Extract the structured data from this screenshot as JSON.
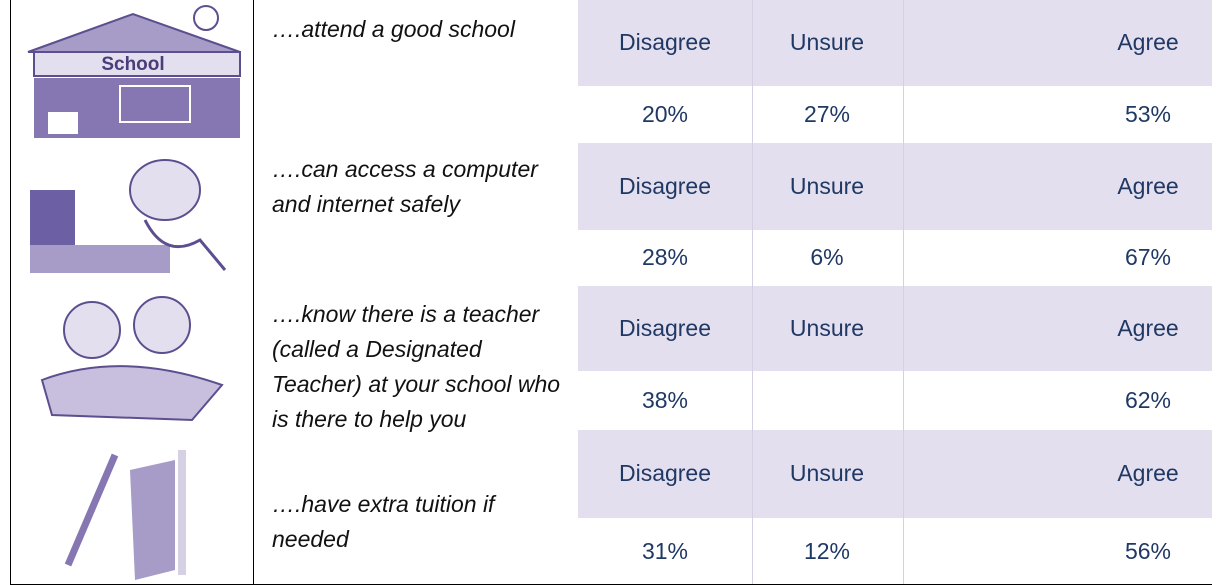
{
  "rows": [
    {
      "icon_label": "School",
      "statement": "….attend a good school",
      "headers": [
        "Disagree",
        "Unsure",
        "Agree"
      ],
      "values": [
        "20%",
        "27%",
        "53%"
      ]
    },
    {
      "statement": "….can access a computer and internet safely",
      "headers": [
        "Disagree",
        "Unsure",
        "Agree"
      ],
      "values": [
        "28%",
        "6%",
        "67%"
      ]
    },
    {
      "statement": "….know there is a teacher (called a Designated Teacher) at your school who is there to help you",
      "headers": [
        "Disagree",
        "Unsure",
        "Agree"
      ],
      "values": [
        "38%",
        null,
        "62%"
      ]
    },
    {
      "statement": "….have extra tuition if needed",
      "headers": [
        "Disagree",
        "Unsure",
        "Agree"
      ],
      "values": [
        "31%",
        "12%",
        "56%"
      ]
    }
  ]
}
